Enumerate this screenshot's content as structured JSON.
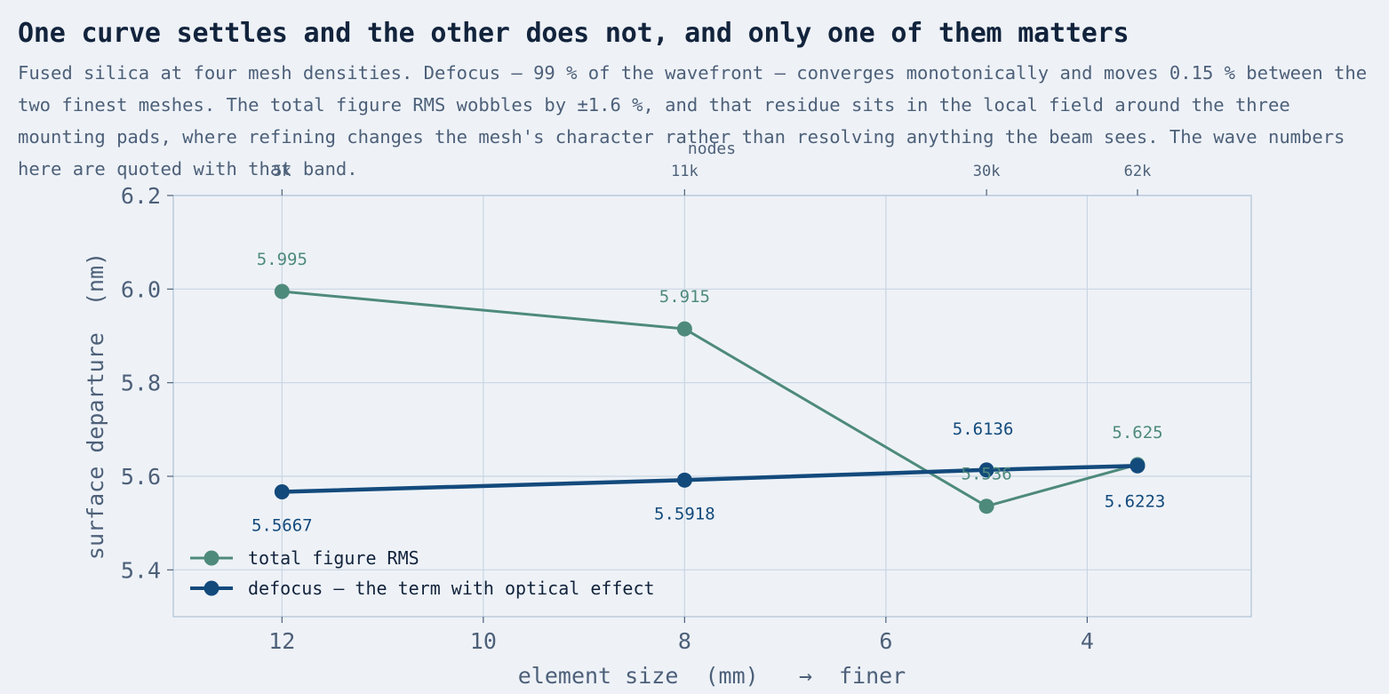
{
  "chart_data": {
    "type": "line",
    "title": "One curve settles and the other does not, and only one of them matters",
    "subtitle": "Fused silica at four mesh densities. Defocus — 99 % of the wavefront — converges monotonically and moves 0.15 % between the two finest meshes. The total figure RMS wobbles by ±1.6 %, and that residue sits in the local field around the three mounting pads, where refining changes the mesh's character rather than resolving anything the beam sees. The wave numbers here are quoted with that band.",
    "xlabel": "element size  (mm)   →  finer",
    "ylabel": "surface departure  (nm)",
    "x2label": "nodes",
    "xlim": [
      13.08,
      2.37
    ],
    "ylim": [
      5.3,
      6.2
    ],
    "x_reversed": true,
    "x_ticks": [
      12,
      10,
      8,
      6,
      4
    ],
    "y_ticks": [
      "5.4",
      "5.6",
      "5.8",
      "6.0",
      "6.2"
    ],
    "x2_ticks": [
      {
        "x": 12,
        "label": "5k"
      },
      {
        "x": 8,
        "label": "11k"
      },
      {
        "x": 5,
        "label": "30k"
      },
      {
        "x": 3.5,
        "label": "62k"
      }
    ],
    "grid": true,
    "legend_position": "lower-left",
    "series": [
      {
        "name": "total figure RMS",
        "color": "#4e8a7c",
        "x": [
          12,
          8,
          5,
          3.5
        ],
        "y": [
          5.995,
          5.915,
          5.536,
          5.625
        ],
        "labels": [
          "5.995",
          "5.915",
          "5.536",
          "5.625"
        ]
      },
      {
        "name": "defocus — the term with optical effect",
        "color": "#134a7c",
        "x": [
          12,
          8,
          5,
          3.5
        ],
        "y": [
          5.5667,
          5.5918,
          5.6136,
          5.6223
        ],
        "labels": [
          "5.5667",
          "5.5918",
          "5.6136",
          "5.6223"
        ]
      }
    ]
  }
}
